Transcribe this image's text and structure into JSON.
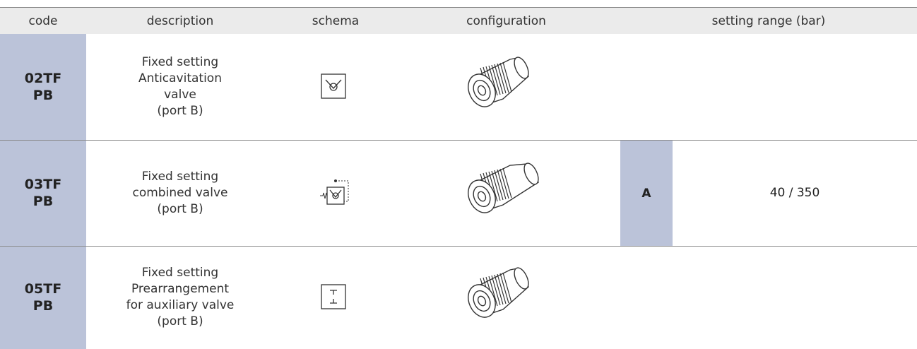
{
  "header": {
    "columns": [
      "code",
      "description",
      "schema",
      "configuration",
      "setting range (bar)"
    ]
  },
  "rows": [
    {
      "code": [
        "02TF",
        "PB"
      ],
      "description": [
        "Fixed setting",
        "Anticavitation",
        "valve",
        "(port B)"
      ]
    },
    {
      "code": [
        "03TF",
        "PB"
      ],
      "description": [
        "Fixed setting",
        "combined valve",
        "(port B)"
      ],
      "setting_option": "A",
      "setting_range": "40 / 350"
    },
    {
      "code": [
        "05TF",
        "PB"
      ],
      "description": [
        "Fixed setting",
        "Prearrangement",
        "for auxiliary valve",
        "(port B)"
      ]
    }
  ]
}
